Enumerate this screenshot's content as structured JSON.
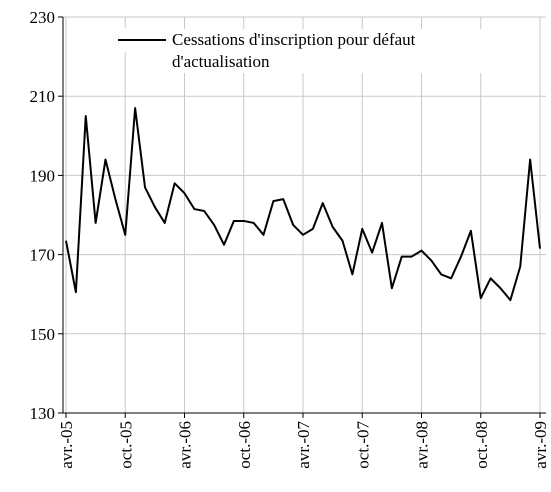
{
  "chart_data": {
    "type": "line",
    "categories": [
      "avr.-05",
      null,
      null,
      null,
      null,
      null,
      "oct.-05",
      null,
      null,
      null,
      null,
      null,
      "avr.-06",
      null,
      null,
      null,
      null,
      null,
      "oct.-06",
      null,
      null,
      null,
      null,
      null,
      "avr.-07",
      null,
      null,
      null,
      null,
      null,
      "oct.-07",
      null,
      null,
      null,
      null,
      null,
      "avr.-08",
      null,
      null,
      null,
      null,
      null,
      "oct.-08",
      null,
      null,
      null,
      null,
      null,
      "avr.-09"
    ],
    "series": [
      {
        "name": "Cessations d'inscription pour défaut d'actualisation",
        "color": "#000000",
        "values": [
          173.5,
          160.5,
          205,
          178,
          194,
          184,
          175,
          207,
          187,
          182,
          178,
          188,
          185.5,
          181.5,
          181,
          177.5,
          172.5,
          178.5,
          178.5,
          178,
          175,
          183.5,
          184,
          177.5,
          175,
          176.5,
          183,
          177,
          173.5,
          165,
          176.5,
          170.5,
          178,
          161.5,
          169.5,
          169.5,
          171,
          168.5,
          165,
          164,
          169.5,
          176,
          159,
          164,
          161.5,
          158.5,
          167,
          194,
          171.5
        ]
      }
    ],
    "ylim": [
      130,
      230
    ],
    "yticks": [
      130,
      150,
      170,
      190,
      210,
      230
    ],
    "grid": true,
    "legend": "top"
  }
}
